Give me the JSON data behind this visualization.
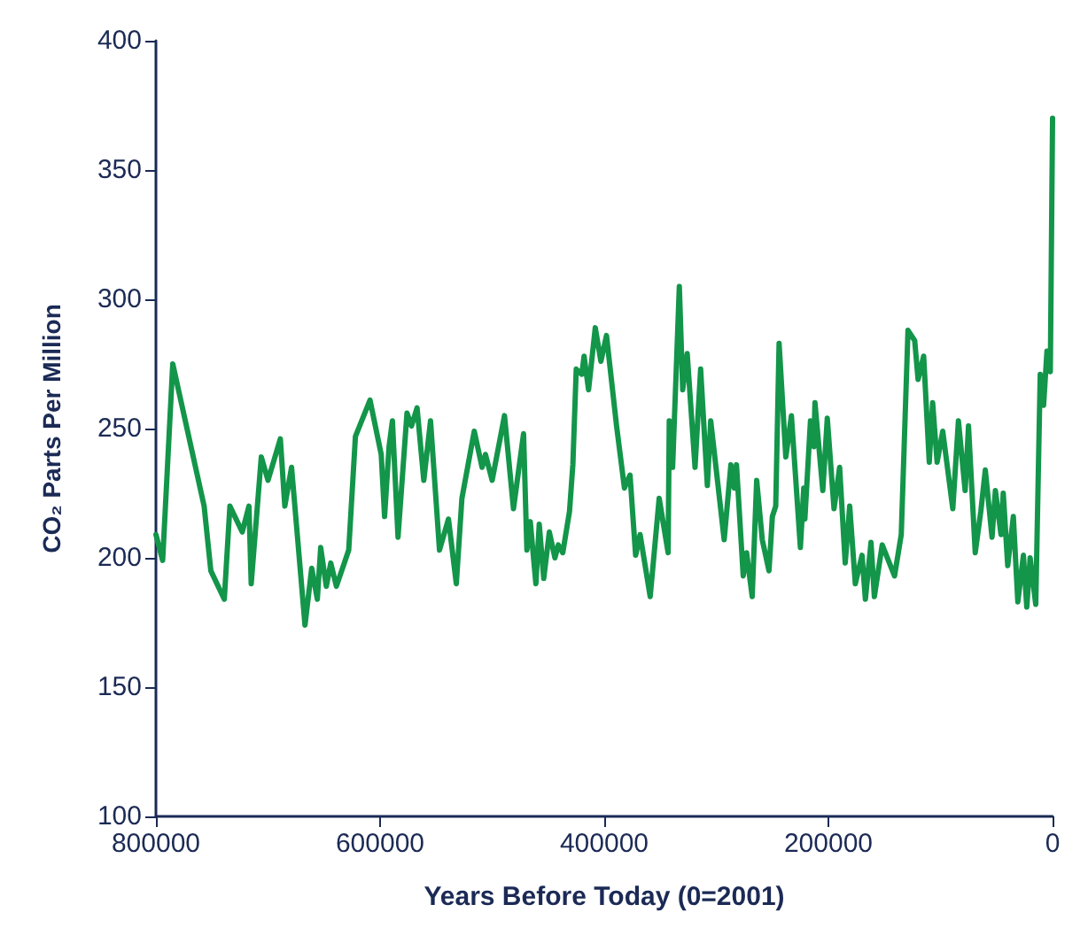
{
  "chart_data": {
    "type": "line",
    "xlabel": "Years Before Today (0=2001)",
    "ylabel": "CO₂ Parts Per Million",
    "xlim": [
      800000,
      0
    ],
    "xticks": [
      800000,
      600000,
      400000,
      200000,
      0
    ],
    "ylim": [
      100,
      400
    ],
    "yticks": [
      100,
      150,
      200,
      250,
      300,
      350,
      400
    ],
    "marker": "none",
    "line_style": "solid",
    "series": [
      {
        "color": "#13954a",
        "x": [
          800000,
          794000,
          785000,
          757000,
          751000,
          739000,
          734000,
          723000,
          717000,
          715000,
          706000,
          700000,
          689000,
          685000,
          679000,
          667000,
          661000,
          656000,
          653000,
          648000,
          644000,
          639000,
          628000,
          622000,
          609000,
          599000,
          596000,
          592000,
          589000,
          584000,
          576000,
          572000,
          567000,
          561000,
          555000,
          547000,
          539000,
          532000,
          527000,
          516000,
          509000,
          506000,
          500000,
          489000,
          481000,
          472000,
          469000,
          466000,
          461000,
          458000,
          454000,
          449000,
          444000,
          441000,
          437000,
          431000,
          428000,
          425000,
          420000,
          418000,
          414000,
          408000,
          403000,
          398000,
          389000,
          382000,
          377000,
          372000,
          368000,
          359000,
          351000,
          343000,
          342000,
          339000,
          333000,
          330000,
          326000,
          319000,
          314000,
          308000,
          305000,
          293000,
          287000,
          284000,
          282000,
          276000,
          273000,
          268000,
          264000,
          259000,
          253000,
          250000,
          247000,
          244000,
          238000,
          233000,
          225000,
          222000,
          221000,
          216000,
          213000,
          212000,
          205000,
          201000,
          195000,
          190000,
          185000,
          181000,
          176000,
          170000,
          167000,
          162000,
          159000,
          152000,
          141000,
          135000,
          129000,
          123000,
          120000,
          115000,
          110000,
          107000,
          103000,
          98000,
          89000,
          84000,
          78000,
          75000,
          69000,
          64000,
          60000,
          54000,
          51000,
          46000,
          44000,
          40000,
          35000,
          31000,
          26000,
          23000,
          20000,
          15000,
          11000,
          8000,
          5000,
          2000,
          0
        ],
        "values": [
          209,
          199,
          275,
          220,
          195,
          184,
          220,
          210,
          220,
          190,
          239,
          230,
          246,
          220,
          235,
          174,
          196,
          184,
          204,
          189,
          198,
          189,
          203,
          247,
          261,
          240,
          216,
          243,
          253,
          208,
          256,
          251,
          258,
          230,
          253,
          203,
          215,
          190,
          223,
          249,
          235,
          240,
          230,
          255,
          219,
          248,
          203,
          214,
          190,
          213,
          192,
          210,
          200,
          205,
          202,
          218,
          236,
          273,
          271,
          278,
          265,
          289,
          276,
          286,
          251,
          227,
          232,
          201,
          209,
          185,
          223,
          202,
          253,
          235,
          305,
          265,
          279,
          235,
          273,
          228,
          253,
          207,
          236,
          227,
          236,
          193,
          202,
          185,
          230,
          207,
          195,
          216,
          220,
          283,
          239,
          255,
          204,
          227,
          215,
          253,
          243,
          260,
          226,
          254,
          219,
          235,
          198,
          220,
          190,
          201,
          184,
          206,
          185,
          205,
          193,
          209,
          288,
          284,
          269,
          278,
          237,
          260,
          237,
          249,
          219,
          253,
          226,
          251,
          202,
          218,
          234,
          208,
          226,
          209,
          225,
          197,
          216,
          183,
          201,
          181,
          200,
          182,
          271,
          259,
          280,
          272,
          370
        ]
      }
    ]
  }
}
